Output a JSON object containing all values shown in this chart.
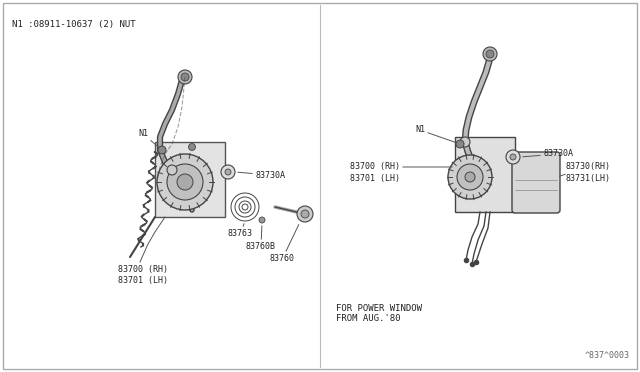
{
  "bg_color": "#ffffff",
  "text_color": "#222222",
  "gray_color": "#888888",
  "fig_width": 6.4,
  "fig_height": 3.72,
  "dpi": 100,
  "title_note": "N1 :08911-10637 (2) NUT",
  "diagram_ref": "^837^0003",
  "font_size_label": 6.0,
  "font_size_note": 6.5,
  "font_size_bottom": 6.5,
  "bottom_text": "FOR POWER WINDOW\nFROM AUG.'80",
  "line_color": "#555555",
  "part_color": "#444444",
  "light_gray": "#cccccc"
}
